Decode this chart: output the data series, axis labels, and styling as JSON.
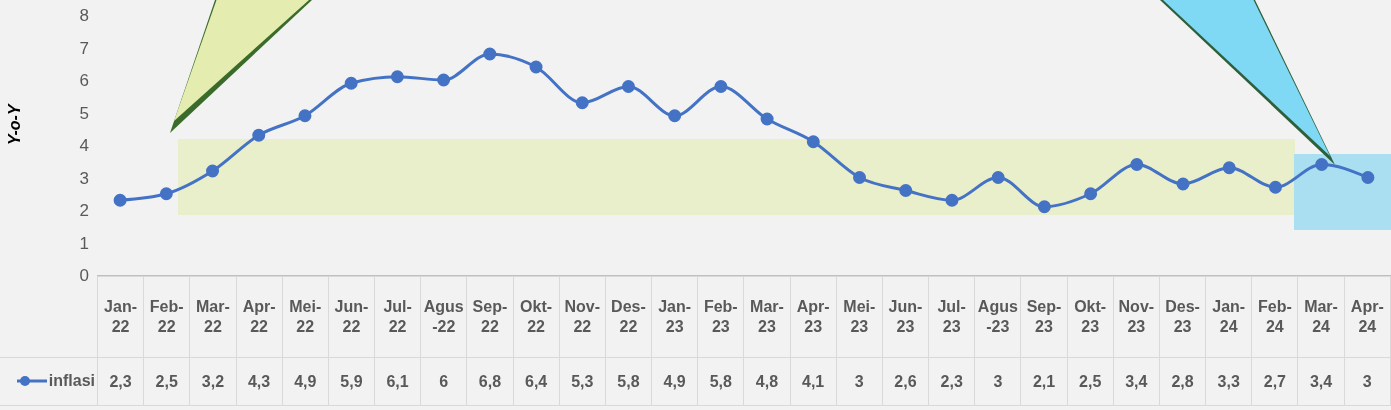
{
  "chart_data": {
    "type": "line",
    "ylabel": "Y-o-Y",
    "categories": [
      "Jan-22",
      "Feb-22",
      "Mar-22",
      "Apr-22",
      "Mei-22",
      "Jun-22",
      "Jul-22",
      "Agus-22",
      "Sep-22",
      "Okt-22",
      "Nov-22",
      "Des-22",
      "Jan-23",
      "Feb-23",
      "Mar-23",
      "Apr-23",
      "Mei-23",
      "Jun-23",
      "Jul-23",
      "Agus-23",
      "Sep-23",
      "Okt-23",
      "Nov-23",
      "Des-23",
      "Jan-24",
      "Feb-24",
      "Mar-24",
      "Apr-24"
    ],
    "series": [
      {
        "name": "inflasi",
        "color": "#4472c4",
        "values": [
          2.3,
          2.5,
          3.2,
          4.3,
          4.9,
          5.9,
          6.1,
          6,
          6.8,
          6.4,
          5.3,
          5.8,
          4.9,
          5.8,
          4.8,
          4.1,
          3,
          2.6,
          2.3,
          3,
          2.1,
          2.5,
          3.4,
          2.8,
          3.3,
          2.7,
          3.4,
          3
        ],
        "value_labels": [
          "2,3",
          "2,5",
          "3,2",
          "4,3",
          "4,9",
          "5,9",
          "6,1",
          "6",
          "6,8",
          "6,4",
          "5,3",
          "5,8",
          "4,9",
          "5,8",
          "4,8",
          "4,1",
          "3",
          "2,6",
          "2,3",
          "3",
          "2,1",
          "2,5",
          "3,4",
          "2,8",
          "3,3",
          "2,7",
          "3,4",
          "3"
        ]
      }
    ],
    "ylim": [
      0,
      8
    ],
    "yticks": [
      0,
      1,
      2,
      3,
      4,
      5,
      6,
      7,
      8
    ],
    "legend": "bottom left",
    "marker": "circle",
    "line_style": "solid"
  }
}
